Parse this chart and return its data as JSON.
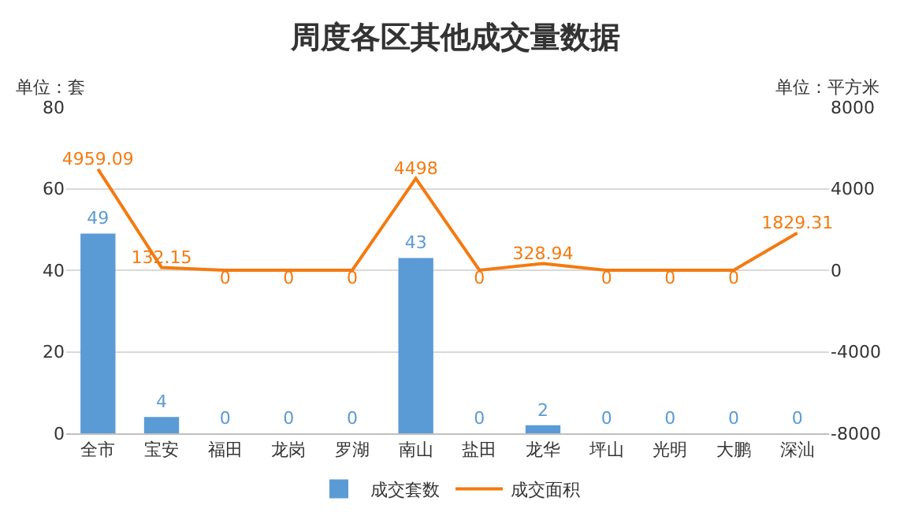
{
  "chart_data": {
    "type": "bar",
    "title": "周度各区其他成交量数据",
    "categories": [
      "全市",
      "宝安",
      "福田",
      "龙岗",
      "罗湖",
      "南山",
      "盐田",
      "龙华",
      "坪山",
      "光明",
      "大鹏",
      "深汕"
    ],
    "series": [
      {
        "name": "成交套数",
        "color": "#5b9bd5",
        "values": [
          49,
          4,
          0,
          0,
          0,
          43,
          0,
          2,
          0,
          0,
          0,
          0
        ]
      },
      {
        "name": "成交面积",
        "type": "line",
        "axis": "y2",
        "color": "#f47a10",
        "values": [
          4959.09,
          132.15,
          0,
          0,
          0,
          4498,
          0,
          328.94,
          0,
          0,
          0,
          1829.31
        ]
      }
    ],
    "ylim": [
      0,
      80
    ],
    "yticks": [
      0,
      20,
      40,
      60,
      80
    ],
    "y2lim": [
      -8000,
      8000
    ],
    "y2ticks": [
      -8000,
      -4000,
      0,
      4000,
      8000
    ],
    "annotations": [
      "单位：套",
      "单位：平方米"
    ],
    "data_labels": true,
    "grid": "y",
    "legend": "bottom",
    "marker": "none",
    "line_style": "solid"
  }
}
